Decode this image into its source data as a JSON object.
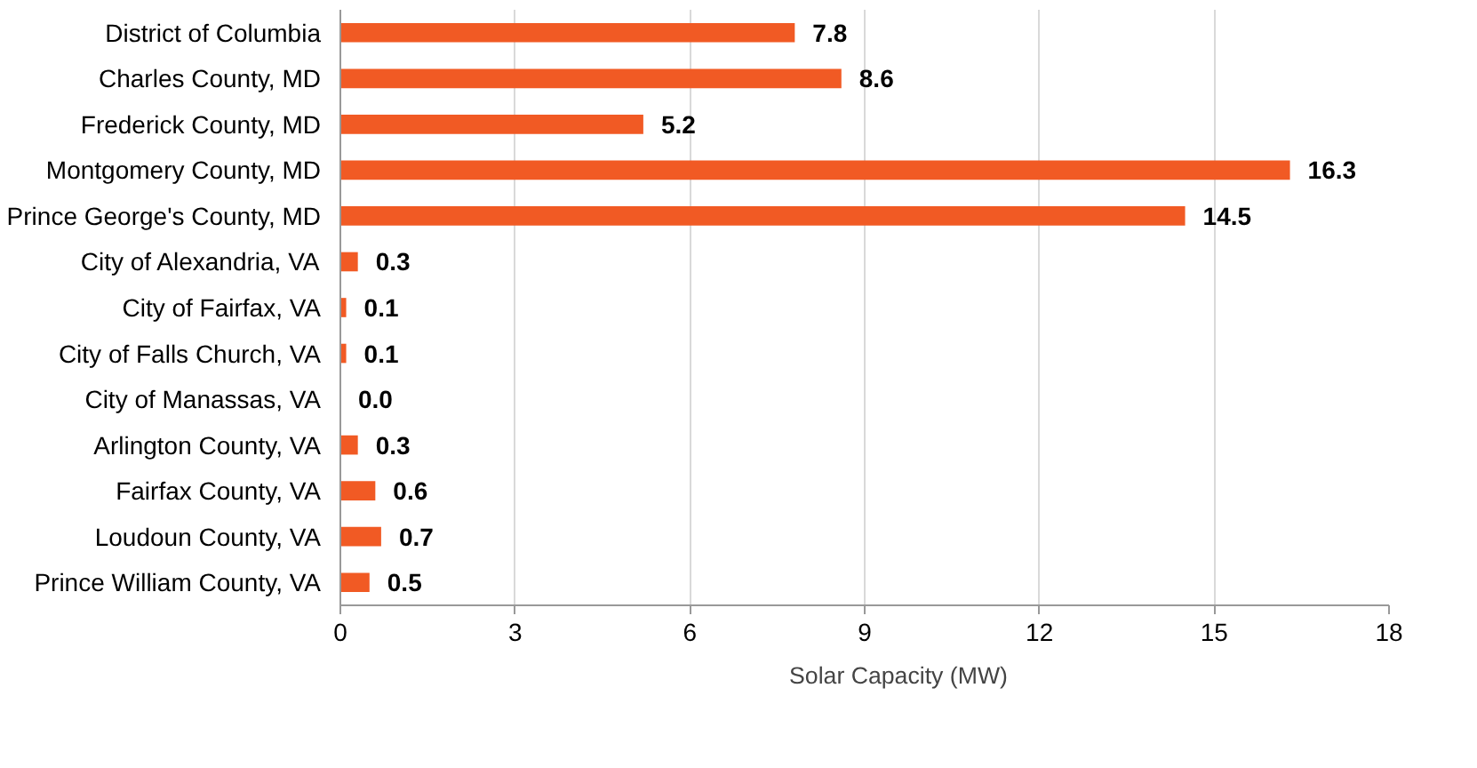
{
  "chart_data": {
    "type": "bar",
    "orientation": "horizontal",
    "categories": [
      "District of Columbia",
      "Charles County, MD",
      "Frederick County, MD",
      "Montgomery County, MD",
      "Prince George's County, MD",
      "City of Alexandria, VA",
      "City of Fairfax, VA",
      "City of Falls Church, VA",
      "City of Manassas, VA",
      "Arlington County, VA",
      "Fairfax County, VA",
      "Loudoun County, VA",
      "Prince William County, VA"
    ],
    "series": [
      {
        "name": "Solar Capacity (MW)",
        "color": "#f15a24",
        "values": [
          7.8,
          8.6,
          5.2,
          16.3,
          14.5,
          0.3,
          0.1,
          0.1,
          0.0,
          0.3,
          0.6,
          0.7,
          0.5
        ],
        "value_labels": [
          "7.8",
          "8.6",
          "5.2",
          "16.3",
          "14.5",
          "0.3",
          "0.1",
          "0.1",
          "0.0",
          "0.3",
          "0.6",
          "0.7",
          "0.5"
        ]
      }
    ],
    "xlim": [
      0,
      18
    ],
    "xticks": [
      0,
      3,
      6,
      9,
      12,
      15,
      18
    ],
    "grid": "x",
    "legend": "bottom"
  }
}
